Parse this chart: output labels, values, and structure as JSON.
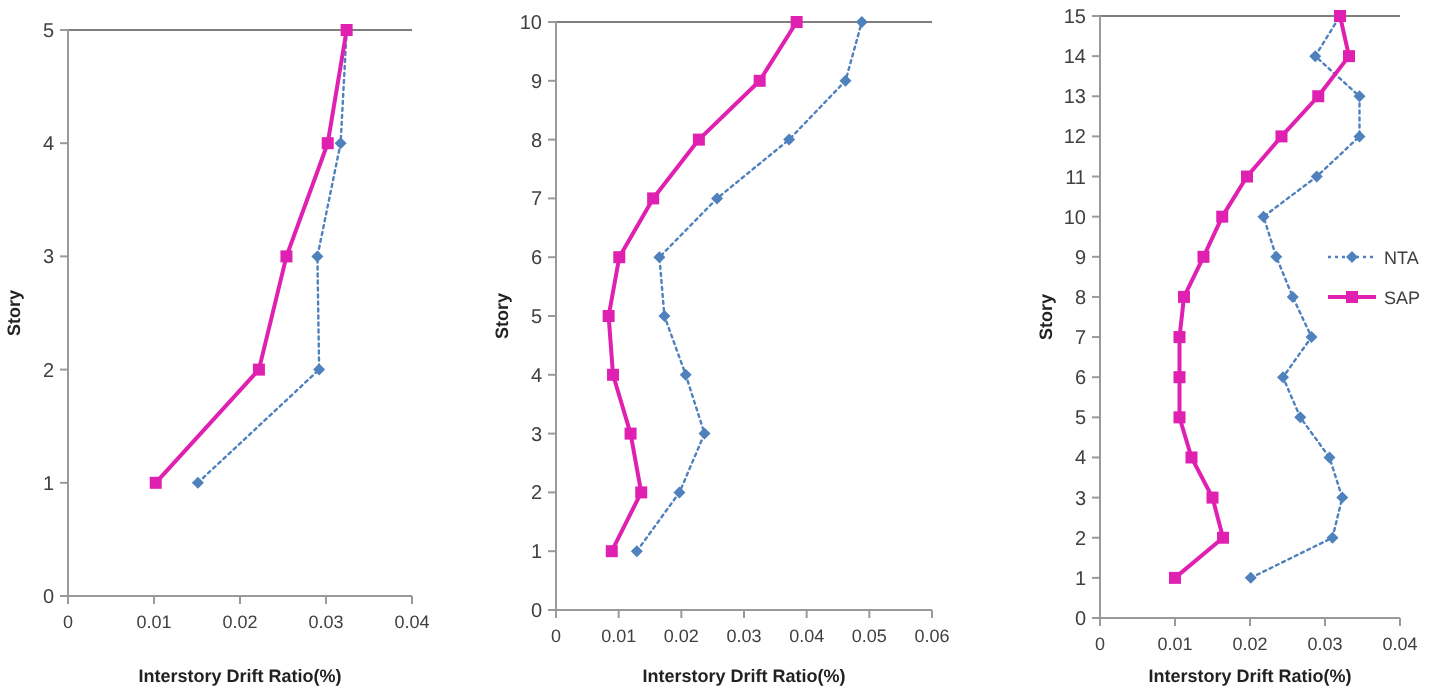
{
  "chart_data": [
    {
      "type": "line",
      "xlabel": "Interstory Drift Ratio(%)",
      "ylabel": "Story",
      "xlim": [
        0,
        0.04
      ],
      "xticks": [
        0,
        0.01,
        0.02,
        0.03,
        0.04
      ],
      "ylim": [
        0,
        5
      ],
      "yticks": [
        0,
        1,
        2,
        3,
        4,
        5
      ],
      "grid": false,
      "legend": false,
      "series": [
        {
          "color": "#4f81bd",
          "marker": "diamond",
          "line_style": "dotted",
          "x": [
            0.0151,
            0.0292,
            0.029,
            0.0317,
            0.0324
          ],
          "values": [
            1,
            2,
            3,
            4,
            5
          ]
        },
        {
          "color": "#e020b0",
          "marker": "square",
          "line_style": "solid",
          "x": [
            0.0102,
            0.0222,
            0.0254,
            0.0302,
            0.0324
          ],
          "values": [
            1,
            2,
            3,
            4,
            5
          ]
        }
      ]
    },
    {
      "type": "line",
      "xlabel": "Interstory Drift Ratio(%)",
      "ylabel": "Story",
      "xlim": [
        0,
        0.06
      ],
      "xticks": [
        0,
        0.01,
        0.02,
        0.03,
        0.04,
        0.05,
        0.06
      ],
      "ylim": [
        0,
        10
      ],
      "yticks": [
        0,
        1,
        2,
        3,
        4,
        5,
        6,
        7,
        8,
        9,
        10
      ],
      "grid": false,
      "legend": false,
      "series": [
        {
          "color": "#4f81bd",
          "marker": "diamond",
          "line_style": "dotted",
          "x": [
            0.0129,
            0.0197,
            0.0237,
            0.0207,
            0.0173,
            0.0165,
            0.0257,
            0.0372,
            0.0462,
            0.0488
          ],
          "values": [
            1,
            2,
            3,
            4,
            5,
            6,
            7,
            8,
            9,
            10
          ]
        },
        {
          "color": "#e020b0",
          "marker": "square",
          "line_style": "solid",
          "x": [
            0.0089,
            0.0136,
            0.0119,
            0.0091,
            0.0084,
            0.0101,
            0.0155,
            0.0228,
            0.0325,
            0.0384
          ],
          "values": [
            1,
            2,
            3,
            4,
            5,
            6,
            7,
            8,
            9,
            10
          ]
        }
      ]
    },
    {
      "type": "line",
      "xlabel": "Interstory Drift Ratio(%)",
      "ylabel": "Story",
      "xlim": [
        0,
        0.04
      ],
      "xticks": [
        0,
        0.01,
        0.02,
        0.03,
        0.04
      ],
      "ylim": [
        0,
        15
      ],
      "yticks": [
        0,
        1,
        2,
        3,
        4,
        5,
        6,
        7,
        8,
        9,
        10,
        11,
        12,
        13,
        14,
        15
      ],
      "grid": false,
      "legend": "right",
      "series": [
        {
          "name": "NTA",
          "color": "#4f81bd",
          "marker": "diamond",
          "line_style": "dotted",
          "x": [
            0.0201,
            0.031,
            0.0323,
            0.0306,
            0.0267,
            0.0244,
            0.0282,
            0.0257,
            0.0235,
            0.0218,
            0.0289,
            0.0346,
            0.0346,
            0.0287,
            0.032
          ],
          "values": [
            1,
            2,
            3,
            4,
            5,
            6,
            7,
            8,
            9,
            10,
            11,
            12,
            13,
            14,
            15
          ]
        },
        {
          "name": "SAP",
          "color": "#e020b0",
          "marker": "square",
          "line_style": "solid",
          "x": [
            0.01,
            0.0164,
            0.015,
            0.0122,
            0.0106,
            0.0106,
            0.0106,
            0.0112,
            0.0138,
            0.0163,
            0.0196,
            0.0242,
            0.0291,
            0.0332,
            0.032
          ],
          "values": [
            1,
            2,
            3,
            4,
            5,
            6,
            7,
            8,
            9,
            10,
            11,
            12,
            13,
            14,
            15
          ]
        }
      ]
    }
  ]
}
